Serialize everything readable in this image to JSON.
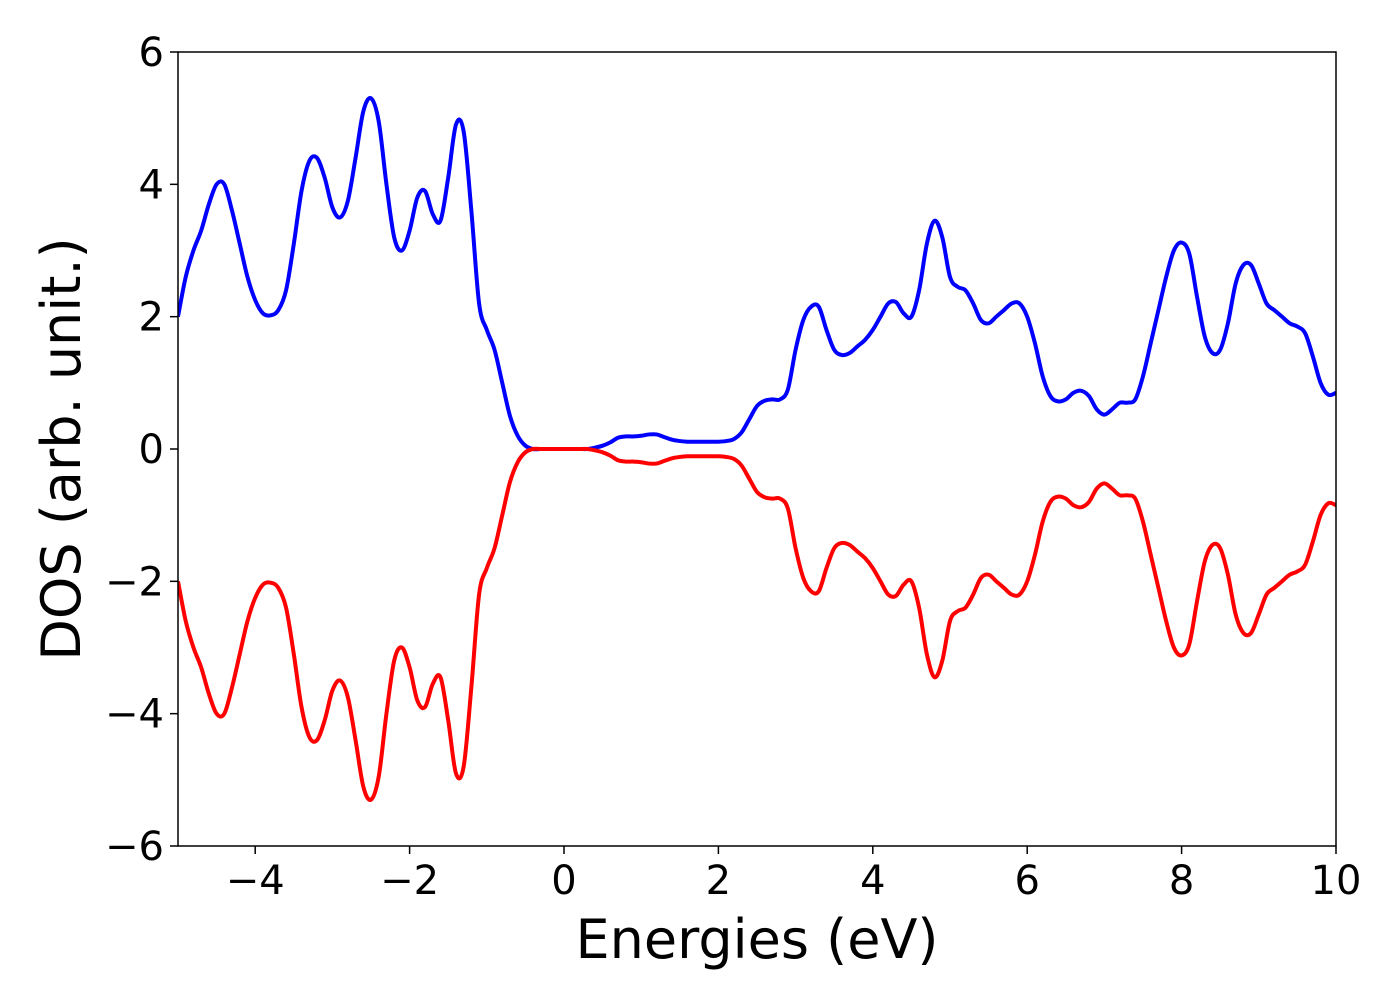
{
  "chart_data": {
    "type": "line",
    "xlabel": "Energies (eV)",
    "ylabel": "DOS (arb. unit.)",
    "xlim": [
      -5,
      10
    ],
    "ylim": [
      -6,
      6
    ],
    "xticks": [
      {
        "value": -4,
        "label": "−4"
      },
      {
        "value": -2,
        "label": "−2"
      },
      0,
      2,
      4,
      6,
      8,
      10
    ],
    "yticks": [
      {
        "value": -6,
        "label": "−6"
      },
      {
        "value": -4,
        "label": "−4"
      },
      {
        "value": -2,
        "label": "−2"
      },
      0,
      2,
      4,
      6
    ],
    "grid": false,
    "x": [
      -5.0,
      -4.9,
      -4.8,
      -4.7,
      -4.6,
      -4.5,
      -4.4,
      -4.3,
      -4.2,
      -4.1,
      -4.0,
      -3.9,
      -3.8,
      -3.7,
      -3.6,
      -3.5,
      -3.4,
      -3.3,
      -3.2,
      -3.1,
      -3.0,
      -2.9,
      -2.8,
      -2.7,
      -2.6,
      -2.5,
      -2.4,
      -2.3,
      -2.2,
      -2.1,
      -2.0,
      -1.9,
      -1.8,
      -1.7,
      -1.6,
      -1.5,
      -1.4,
      -1.3,
      -1.2,
      -1.1,
      -1.0,
      -0.9,
      -0.8,
      -0.7,
      -0.6,
      -0.5,
      -0.4,
      -0.3,
      -0.2,
      -0.1,
      0.0,
      0.1,
      0.2,
      0.3,
      0.4,
      0.5,
      0.6,
      0.7,
      0.8,
      0.9,
      1.0,
      1.1,
      1.2,
      1.3,
      1.4,
      1.5,
      1.6,
      1.7,
      1.8,
      1.9,
      2.0,
      2.1,
      2.2,
      2.3,
      2.4,
      2.5,
      2.6,
      2.7,
      2.8,
      2.9,
      3.0,
      3.1,
      3.2,
      3.3,
      3.4,
      3.5,
      3.6,
      3.7,
      3.8,
      3.9,
      4.0,
      4.1,
      4.2,
      4.3,
      4.4,
      4.5,
      4.6,
      4.7,
      4.8,
      4.9,
      5.0,
      5.1,
      5.2,
      5.3,
      5.4,
      5.5,
      5.6,
      5.7,
      5.8,
      5.9,
      6.0,
      6.1,
      6.2,
      6.3,
      6.4,
      6.5,
      6.6,
      6.7,
      6.8,
      6.9,
      7.0,
      7.1,
      7.2,
      7.3,
      7.4,
      7.5,
      7.6,
      7.7,
      7.8,
      7.9,
      8.0,
      8.1,
      8.2,
      8.3,
      8.4,
      8.5,
      8.6,
      8.7,
      8.8,
      8.9,
      9.0,
      9.1,
      9.2,
      9.3,
      9.4,
      9.5,
      9.6,
      9.7,
      9.8,
      9.9,
      10.0
    ],
    "series": [
      {
        "color": "#0000ff",
        "values": [
          2.0,
          2.6,
          3.0,
          3.3,
          3.7,
          4.0,
          4.0,
          3.6,
          3.1,
          2.6,
          2.25,
          2.05,
          2.02,
          2.1,
          2.4,
          3.1,
          3.9,
          4.35,
          4.4,
          4.1,
          3.65,
          3.5,
          3.75,
          4.4,
          5.1,
          5.3,
          4.95,
          4.0,
          3.2,
          3.0,
          3.3,
          3.8,
          3.9,
          3.55,
          3.45,
          4.1,
          4.9,
          4.8,
          3.6,
          2.2,
          1.8,
          1.5,
          1.0,
          0.5,
          0.2,
          0.05,
          0.0,
          0,
          0,
          0,
          0,
          0,
          0,
          0,
          0.02,
          0.05,
          0.1,
          0.17,
          0.19,
          0.19,
          0.2,
          0.22,
          0.22,
          0.18,
          0.14,
          0.12,
          0.11,
          0.11,
          0.11,
          0.11,
          0.11,
          0.12,
          0.15,
          0.25,
          0.45,
          0.65,
          0.73,
          0.75,
          0.75,
          0.9,
          1.5,
          1.95,
          2.15,
          2.15,
          1.8,
          1.5,
          1.42,
          1.45,
          1.55,
          1.65,
          1.8,
          2.0,
          2.2,
          2.22,
          2.05,
          2.0,
          2.4,
          3.1,
          3.45,
          3.2,
          2.6,
          2.45,
          2.4,
          2.2,
          1.95,
          1.9,
          2.0,
          2.1,
          2.2,
          2.2,
          2.0,
          1.6,
          1.1,
          0.8,
          0.72,
          0.75,
          0.85,
          0.88,
          0.8,
          0.6,
          0.52,
          0.6,
          0.7,
          0.7,
          0.75,
          1.1,
          1.6,
          2.1,
          2.6,
          3.0,
          3.12,
          2.95,
          2.3,
          1.7,
          1.45,
          1.5,
          1.9,
          2.5,
          2.78,
          2.78,
          2.5,
          2.2,
          2.1,
          2.0,
          1.9,
          1.85,
          1.75,
          1.4,
          1.0,
          0.82,
          0.85
        ]
      },
      {
        "color": "#ff0000",
        "values": [
          -2.0,
          -2.6,
          -3.0,
          -3.3,
          -3.7,
          -4.0,
          -4.0,
          -3.6,
          -3.1,
          -2.6,
          -2.25,
          -2.05,
          -2.02,
          -2.1,
          -2.4,
          -3.1,
          -3.9,
          -4.35,
          -4.4,
          -4.1,
          -3.65,
          -3.5,
          -3.75,
          -4.4,
          -5.1,
          -5.3,
          -4.95,
          -4.0,
          -3.2,
          -3.0,
          -3.3,
          -3.8,
          -3.9,
          -3.55,
          -3.45,
          -4.1,
          -4.9,
          -4.8,
          -3.6,
          -2.2,
          -1.8,
          -1.5,
          -1.0,
          -0.5,
          -0.2,
          -0.05,
          0.0,
          0,
          0,
          0,
          0,
          0,
          0,
          0,
          -0.02,
          -0.05,
          -0.1,
          -0.17,
          -0.19,
          -0.19,
          -0.2,
          -0.22,
          -0.22,
          -0.18,
          -0.14,
          -0.12,
          -0.11,
          -0.11,
          -0.11,
          -0.11,
          -0.11,
          -0.12,
          -0.15,
          -0.25,
          -0.45,
          -0.65,
          -0.73,
          -0.75,
          -0.75,
          -0.9,
          -1.5,
          -1.95,
          -2.15,
          -2.15,
          -1.8,
          -1.5,
          -1.42,
          -1.45,
          -1.55,
          -1.65,
          -1.8,
          -2.0,
          -2.2,
          -2.22,
          -2.05,
          -2.0,
          -2.4,
          -3.1,
          -3.45,
          -3.2,
          -2.6,
          -2.45,
          -2.4,
          -2.2,
          -1.95,
          -1.9,
          -2.0,
          -2.1,
          -2.2,
          -2.2,
          -2.0,
          -1.6,
          -1.1,
          -0.8,
          -0.72,
          -0.75,
          -0.85,
          -0.88,
          -0.8,
          -0.6,
          -0.52,
          -0.6,
          -0.7,
          -0.7,
          -0.75,
          -1.1,
          -1.6,
          -2.1,
          -2.6,
          -3.0,
          -3.12,
          -2.95,
          -2.3,
          -1.7,
          -1.45,
          -1.5,
          -1.9,
          -2.5,
          -2.78,
          -2.78,
          -2.5,
          -2.2,
          -2.1,
          -2.0,
          -1.9,
          -1.85,
          -1.75,
          -1.4,
          -1.0,
          -0.82,
          -0.85
        ]
      }
    ]
  }
}
